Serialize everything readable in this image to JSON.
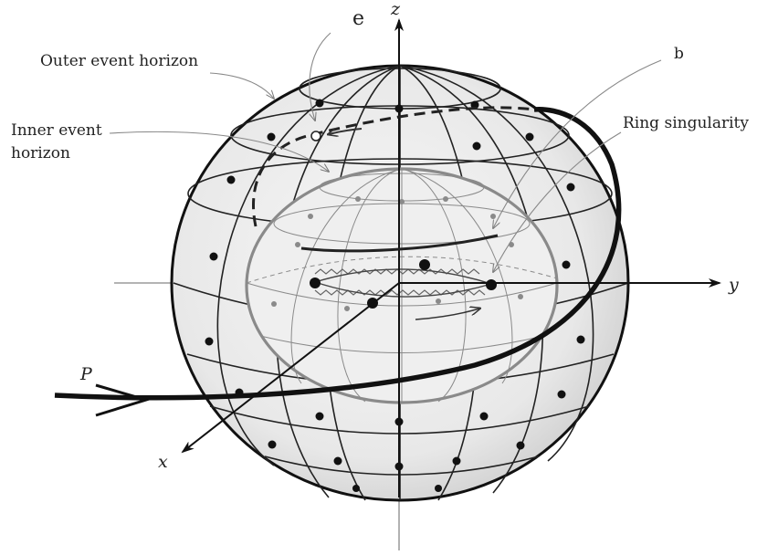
{
  "labels": {
    "e": "e",
    "b": "b",
    "outer": "Outer event horizon",
    "inner_line1": "Inner event",
    "inner_line2": "horizon",
    "ring": "Ring singularity",
    "P": "P"
  },
  "axes": {
    "x": "x",
    "y": "y",
    "z": "z"
  },
  "colors": {
    "ink": "#111111",
    "outer_fill": "#e6e6e6",
    "inner_stroke": "#8a8a8a",
    "guide": "#888888"
  }
}
